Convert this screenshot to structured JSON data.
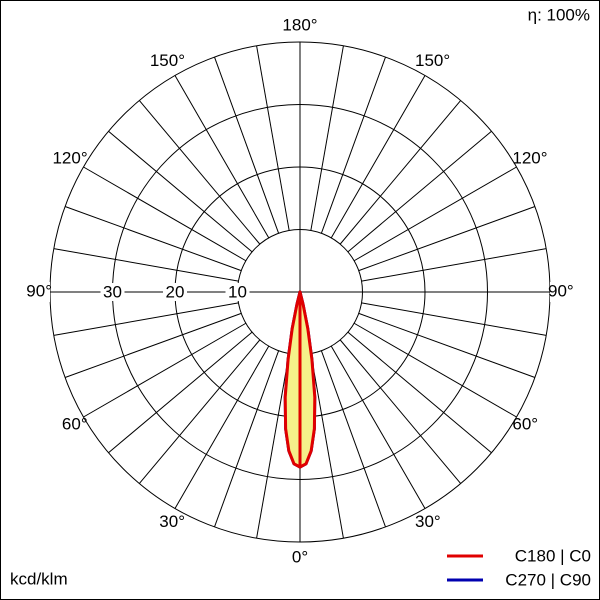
{
  "chart_data": {
    "type": "polar",
    "efficiency_label": "η: 100%",
    "unit_label": "kcd/klm",
    "rlim": [
      0,
      40
    ],
    "rticks": [
      10,
      20,
      30
    ],
    "thetaticks": [
      {
        "value": 0,
        "label": "0°"
      },
      {
        "value": 30,
        "label": "30°"
      },
      {
        "value": 60,
        "label": "60°"
      },
      {
        "value": 90,
        "label": "90°"
      },
      {
        "value": 120,
        "label": "120°"
      },
      {
        "value": 150,
        "label": "150°"
      },
      {
        "value": 180,
        "label": "180°"
      }
    ],
    "thetaticks_left": [
      {
        "value": 30,
        "label": "30°"
      },
      {
        "value": 60,
        "label": "60°"
      },
      {
        "value": 90,
        "label": "90°"
      },
      {
        "value": 120,
        "label": "120°"
      },
      {
        "value": 150,
        "label": "150°"
      }
    ],
    "x": [
      0,
      2,
      4,
      6,
      8,
      10,
      12,
      14,
      16,
      90,
      180
    ],
    "series": [
      {
        "name": "C270 | C90",
        "color": "#0000b0",
        "values": [
          28,
          27.5,
          25.5,
          22,
          17,
          11,
          6,
          2,
          0,
          0,
          0
        ]
      },
      {
        "name": "C180 | C0",
        "color": "#e00000",
        "fill": "#f5f08a",
        "values": [
          28,
          27.5,
          25.5,
          22,
          17,
          11,
          6,
          2,
          0,
          0,
          0
        ]
      }
    ]
  }
}
